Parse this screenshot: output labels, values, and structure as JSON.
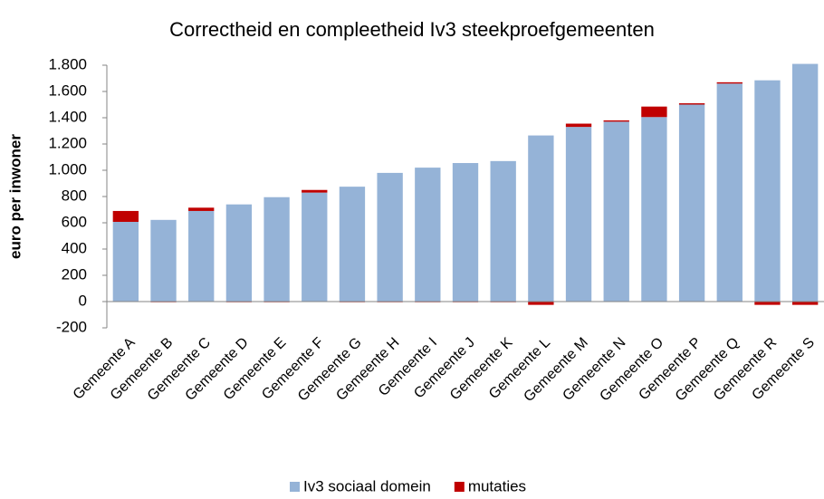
{
  "chart_data": {
    "type": "stacked_bar",
    "title": "Correctheid en compleetheid Iv3 steekproefgemeenten",
    "y_label": "euro per inwoner",
    "categories": [
      "Gemeente A",
      "Gemeente B",
      "Gemeente C",
      "Gemeente D",
      "Gemeente E",
      "Gemeente F",
      "Gemeente G",
      "Gemeente H",
      "Gemeente I",
      "Gemeente J",
      "Gemeente K",
      "Gemeente L",
      "Gemeente M",
      "Gemeente N",
      "Gemeente O",
      "Gemeente P",
      "Gemeente Q",
      "Gemeente R",
      "Gemeente S"
    ],
    "series": [
      {
        "name": "Iv3 sociaal domein",
        "color": "#95b3d7",
        "values": [
          607,
          622,
          690,
          740,
          795,
          830,
          875,
          980,
          1020,
          1055,
          1070,
          1265,
          1330,
          1370,
          1405,
          1500,
          1660,
          1685,
          1810
        ]
      },
      {
        "name": "mutaties",
        "color": "#c00000",
        "values": [
          83,
          -5,
          25,
          -5,
          -5,
          20,
          -5,
          -5,
          -5,
          -5,
          -5,
          -25,
          25,
          10,
          80,
          10,
          10,
          -25,
          -25
        ]
      }
    ],
    "ylim": [
      -200,
      1800
    ],
    "yticks": [
      -200,
      0,
      200,
      400,
      600,
      800,
      {
        "value": 1000,
        "label": "1.000"
      },
      {
        "value": 1200,
        "label": "1.200"
      },
      {
        "value": 1400,
        "label": "1.400"
      },
      {
        "value": 1600,
        "label": "1.600"
      },
      {
        "value": 1800,
        "label": "1.800"
      }
    ],
    "legend": "bottom"
  }
}
